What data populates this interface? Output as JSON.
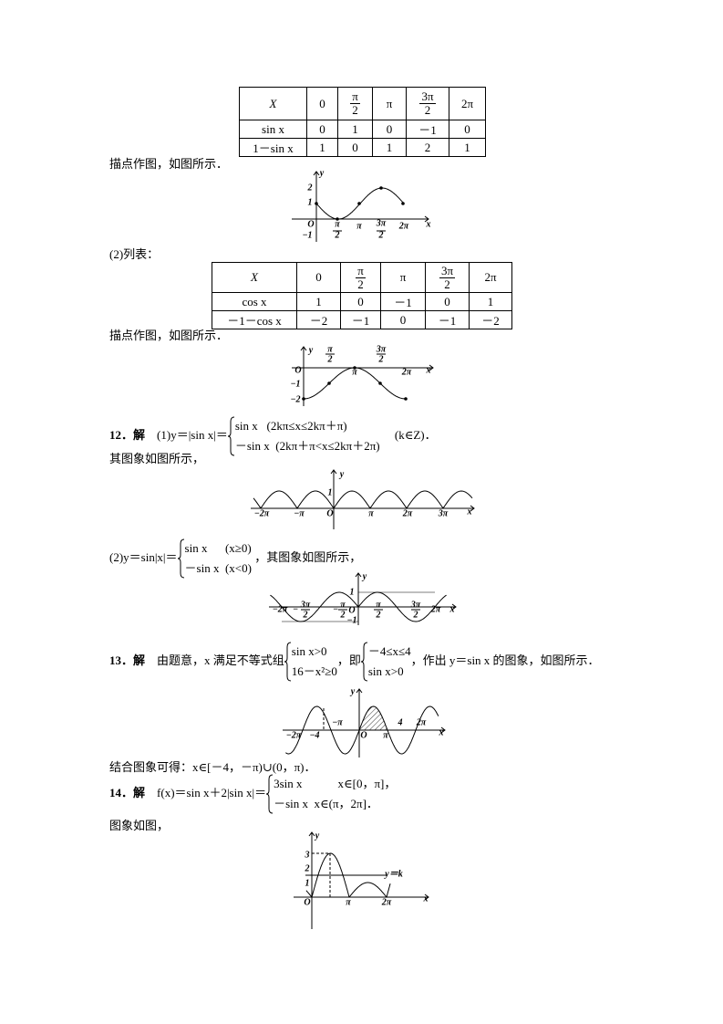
{
  "table1": {
    "header": [
      "X",
      "0",
      {
        "num": "π",
        "den": "2"
      },
      "π",
      {
        "num": "3π",
        "den": "2"
      },
      "2π"
    ],
    "rows": [
      [
        "sin x",
        "0",
        "1",
        "0",
        "－1",
        "0"
      ],
      [
        "1－sin x",
        "1",
        "0",
        "1",
        "2",
        "1"
      ]
    ]
  },
  "text1": "描点作图，如图所示．",
  "fig1": {
    "labels": [
      "y",
      "2",
      "1",
      "O",
      "−1",
      "π",
      "2",
      "π",
      "3π",
      "2",
      "2π",
      "x"
    ]
  },
  "part2": "(2)列表：",
  "table2": {
    "header": [
      "X",
      "0",
      {
        "num": "π",
        "den": "2"
      },
      "π",
      {
        "num": "3π",
        "den": "2"
      },
      "2π"
    ],
    "rows": [
      [
        "cos x",
        "1",
        "0",
        "－1",
        "0",
        "1"
      ],
      [
        "－1－cos x",
        "－2",
        "－1",
        "0",
        "－1",
        "－2"
      ]
    ]
  },
  "text2": "描点作图，如图所示．",
  "fig2": {
    "labels": [
      "y",
      "π",
      "2",
      "3π",
      "2",
      "O",
      "π",
      "2π",
      "x",
      "−1",
      "−2"
    ]
  },
  "q12": {
    "label": "12．解",
    "lead": "(1)y＝|sin x|＝",
    "cases": [
      "sin x   (2kπ≤x≤2kπ＋π)",
      "－sin x  (2kπ＋π<x≤2kπ＋2π)"
    ],
    "tail": "(k∈Z)．",
    "text": "其图象如图所示，"
  },
  "fig3": {
    "labels": [
      "y",
      "1",
      "O",
      "−2π",
      "−π",
      "π",
      "2π",
      "3π",
      "x"
    ]
  },
  "q12b": {
    "lead": "(2)y＝sin|x|＝",
    "cases": [
      "sin x      (x≥0)",
      "－sin x  (x<0)"
    ],
    "tail": "，其图象如图所示，"
  },
  "fig4": {
    "labels": [
      "y",
      "1",
      "O",
      "−1",
      "−2π",
      "−",
      "3π",
      "2",
      "−",
      "π",
      "2",
      "π",
      "2",
      "3π",
      "2",
      "2π",
      "x"
    ]
  },
  "q13": {
    "label": "13．解",
    "lead": "由题意，x 满足不等式组",
    "cases1": [
      "sin x>0",
      "16－x²≥0"
    ],
    "mid": "，即",
    "cases2": [
      "－4≤x≤4",
      "sin x>0"
    ],
    "tail": "，作出 y＝sin x 的图象，如图所示．"
  },
  "fig5": {
    "labels": [
      "y",
      "−2π",
      "−4",
      "−π",
      "O",
      "π",
      "4",
      "2π",
      "x"
    ]
  },
  "q13result": "结合图象可得：x∈[－4，－π)∪(0，π)．",
  "q14": {
    "label": "14．解",
    "lead": "f(x)＝sin x＋2|sin x|＝",
    "cases": [
      "3sin x            x∈[0，π]，",
      "－sin x  x∈(π，2π]．"
    ],
    "text": "图象如图，"
  },
  "fig6": {
    "labels": [
      "y",
      "3",
      "2",
      "1",
      "O",
      "π",
      "2π",
      "x",
      "y＝k"
    ]
  }
}
